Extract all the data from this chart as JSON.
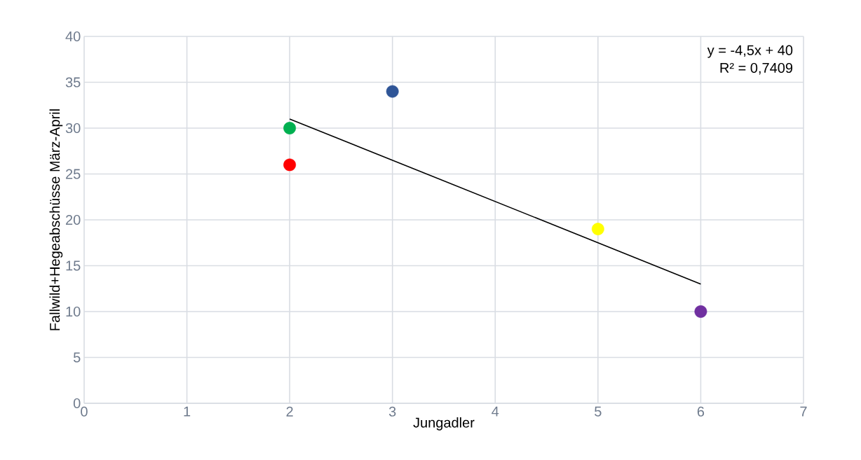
{
  "chart_data": {
    "type": "scatter",
    "xlabel": "Jungadler",
    "ylabel": "Fallwild+Hegeabschüsse März-April",
    "xlim": [
      0,
      7
    ],
    "xticks": [
      0,
      1,
      2,
      3,
      4,
      5,
      6,
      7
    ],
    "ylim": [
      0,
      40
    ],
    "yticks": [
      0,
      5,
      10,
      15,
      20,
      25,
      30,
      35,
      40
    ],
    "grid": true,
    "marker": "circle",
    "series": [
      {
        "x": [
          2,
          2,
          3,
          5,
          6
        ],
        "values": [
          30,
          26,
          34,
          19,
          10
        ],
        "colors": [
          "#00b050",
          "#ff0000",
          "#2f5597",
          "#ffff00",
          "#7030a0"
        ]
      },
      {
        "type": "line",
        "x": [
          2,
          6
        ],
        "values": [
          31,
          13
        ],
        "color": "#000000",
        "marker": "none"
      }
    ],
    "annotations": [
      "y = -4,5x + 40",
      "R² = 0,7409"
    ]
  }
}
